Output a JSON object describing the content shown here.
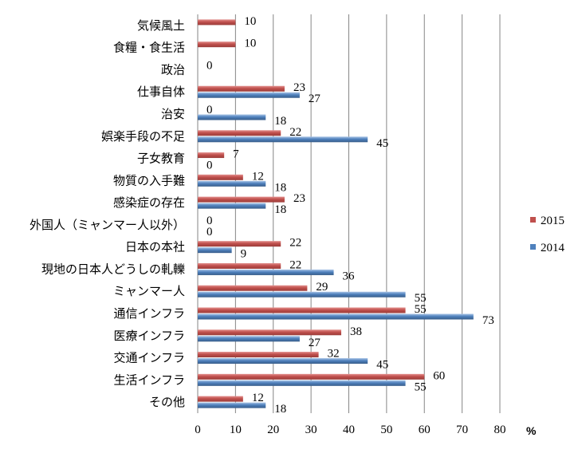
{
  "chart_data": {
    "type": "bar",
    "orientation": "horizontal",
    "categories": [
      "気候風土",
      "食糧・食生活",
      "政治",
      "仕事自体",
      "治安",
      "娯楽手段の不足",
      "子女教育",
      "物質の入手難",
      "感染症の存在",
      "外国人（ミャンマー人以外）",
      "日本の本社",
      "現地の日本人どうしの軋轢",
      "ミャンマー人",
      "通信インフラ",
      "医療インフラ",
      "交通インフラ",
      "生活インフラ",
      "その他"
    ],
    "series": [
      {
        "name": "2015",
        "color": "#C0504D",
        "values": [
          10,
          10,
          0,
          23,
          0,
          22,
          7,
          12,
          23,
          0,
          22,
          22,
          29,
          55,
          38,
          32,
          60,
          12
        ]
      },
      {
        "name": "2014",
        "color": "#4F81BD",
        "values": [
          null,
          null,
          null,
          27,
          18,
          45,
          0,
          18,
          18,
          0,
          9,
          36,
          55,
          73,
          27,
          45,
          55,
          18
        ]
      }
    ],
    "xlim": [
      0,
      80
    ],
    "xticks": [
      "0",
      "10",
      "20",
      "30",
      "40",
      "50",
      "60",
      "70",
      "80"
    ],
    "unit": "%",
    "grid": "vertical",
    "legend_position": "right"
  }
}
